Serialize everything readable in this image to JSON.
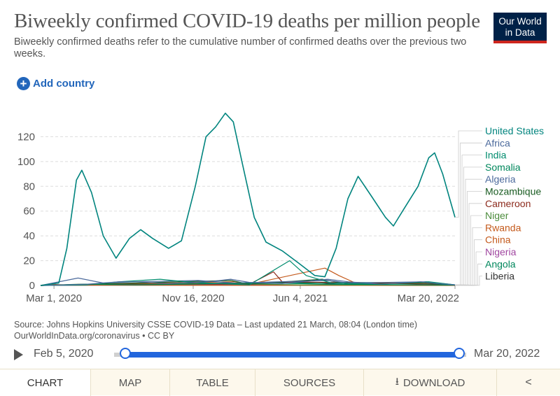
{
  "header": {
    "title": "Biweekly confirmed COVID-19 deaths per million people",
    "subtitle": "Biweekly confirmed deaths refer to the cumulative number of confirmed deaths over the previous two weeks.",
    "logo_line1": "Our World",
    "logo_line2": "in Data"
  },
  "controls": {
    "add_country_label": "Add country"
  },
  "chart_data": {
    "type": "line",
    "x_tick_labels": [
      "Mar 1, 2020",
      "Nov 16, 2020",
      "Jun 4, 2021",
      "Mar 20, 2022"
    ],
    "x_range": [
      "2020-02-05",
      "2022-03-20"
    ],
    "ylim": [
      0,
      140
    ],
    "y_ticks": [
      0,
      20,
      40,
      60,
      80,
      100,
      120
    ],
    "grid": "horizontal dashed",
    "legend_position": "right",
    "series": [
      {
        "name": "United States",
        "color": "#00847e",
        "points": [
          [
            "2020-02-05",
            0
          ],
          [
            "2020-03-10",
            2
          ],
          [
            "2020-03-25",
            30
          ],
          [
            "2020-04-12",
            85
          ],
          [
            "2020-04-22",
            93
          ],
          [
            "2020-05-10",
            75
          ],
          [
            "2020-06-01",
            40
          ],
          [
            "2020-06-25",
            22
          ],
          [
            "2020-07-20",
            38
          ],
          [
            "2020-08-10",
            45
          ],
          [
            "2020-09-01",
            38
          ],
          [
            "2020-10-01",
            30
          ],
          [
            "2020-10-25",
            36
          ],
          [
            "2020-11-20",
            80
          ],
          [
            "2020-12-10",
            120
          ],
          [
            "2020-12-28",
            128
          ],
          [
            "2021-01-15",
            139
          ],
          [
            "2021-01-30",
            132
          ],
          [
            "2021-02-15",
            100
          ],
          [
            "2021-03-10",
            55
          ],
          [
            "2021-04-01",
            35
          ],
          [
            "2021-05-01",
            28
          ],
          [
            "2021-06-01",
            18
          ],
          [
            "2021-07-01",
            8
          ],
          [
            "2021-07-20",
            7
          ],
          [
            "2021-08-10",
            30
          ],
          [
            "2021-09-01",
            70
          ],
          [
            "2021-09-20",
            88
          ],
          [
            "2021-10-15",
            72
          ],
          [
            "2021-11-10",
            55
          ],
          [
            "2021-11-25",
            48
          ],
          [
            "2021-12-15",
            62
          ],
          [
            "2022-01-10",
            80
          ],
          [
            "2022-01-30",
            103
          ],
          [
            "2022-02-10",
            107
          ],
          [
            "2022-02-25",
            90
          ],
          [
            "2022-03-10",
            70
          ],
          [
            "2022-03-20",
            55
          ]
        ]
      },
      {
        "name": "Africa",
        "color": "#4c6a9c",
        "points": [
          [
            "2020-02-05",
            0
          ],
          [
            "2020-05-01",
            1
          ],
          [
            "2020-07-01",
            3
          ],
          [
            "2020-08-01",
            3
          ],
          [
            "2020-10-01",
            1.5
          ],
          [
            "2020-12-15",
            3
          ],
          [
            "2021-01-25",
            5
          ],
          [
            "2021-03-01",
            2.5
          ],
          [
            "2021-05-01",
            1.5
          ],
          [
            "2021-07-25",
            5
          ],
          [
            "2021-09-01",
            3
          ],
          [
            "2021-11-01",
            1
          ],
          [
            "2022-01-15",
            3
          ],
          [
            "2022-02-15",
            1.5
          ],
          [
            "2022-03-20",
            0.5
          ]
        ]
      },
      {
        "name": "India",
        "color": "#008c6e",
        "points": [
          [
            "2020-02-05",
            0
          ],
          [
            "2020-05-01",
            0.5
          ],
          [
            "2020-07-01",
            3
          ],
          [
            "2020-09-15",
            5
          ],
          [
            "2020-11-01",
            3
          ],
          [
            "2021-01-01",
            1.5
          ],
          [
            "2021-03-01",
            0.5
          ],
          [
            "2021-05-15",
            20
          ],
          [
            "2021-06-15",
            8
          ],
          [
            "2021-08-01",
            2
          ],
          [
            "2021-11-01",
            1
          ],
          [
            "2022-01-30",
            3
          ],
          [
            "2022-03-20",
            0.5
          ]
        ]
      },
      {
        "name": "Somalia",
        "color": "#00875c",
        "points": [
          [
            "2020-02-05",
            0
          ],
          [
            "2020-05-01",
            1
          ],
          [
            "2020-08-01",
            0.5
          ],
          [
            "2021-04-01",
            2
          ],
          [
            "2021-08-01",
            1
          ],
          [
            "2022-03-20",
            0.3
          ]
        ]
      },
      {
        "name": "Algeria",
        "color": "#4c6a9c",
        "points": [
          [
            "2020-02-05",
            0
          ],
          [
            "2020-04-15",
            6
          ],
          [
            "2020-06-01",
            2
          ],
          [
            "2020-08-01",
            3
          ],
          [
            "2020-11-25",
            4
          ],
          [
            "2021-02-01",
            2
          ],
          [
            "2021-07-25",
            4
          ],
          [
            "2021-09-01",
            2
          ],
          [
            "2022-01-25",
            3
          ],
          [
            "2022-03-20",
            0.5
          ]
        ]
      },
      {
        "name": "Mozambique",
        "color": "#1a5c22",
        "points": [
          [
            "2020-02-05",
            0
          ],
          [
            "2021-01-25",
            4
          ],
          [
            "2021-03-01",
            1
          ],
          [
            "2021-07-15",
            5
          ],
          [
            "2021-09-01",
            1
          ],
          [
            "2022-01-20",
            2
          ],
          [
            "2022-03-20",
            0.3
          ]
        ]
      },
      {
        "name": "Cameroon",
        "color": "#8c2a1c",
        "points": [
          [
            "2020-02-05",
            0
          ],
          [
            "2020-06-01",
            1
          ],
          [
            "2021-03-01",
            1
          ],
          [
            "2021-04-15",
            11
          ],
          [
            "2021-05-01",
            3
          ],
          [
            "2021-10-15",
            2
          ],
          [
            "2022-03-20",
            0.5
          ]
        ]
      },
      {
        "name": "Niger",
        "color": "#4c8c3c",
        "points": [
          [
            "2020-02-05",
            0
          ],
          [
            "2020-04-15",
            1
          ],
          [
            "2021-01-01",
            1.5
          ],
          [
            "2021-06-01",
            0.5
          ],
          [
            "2022-03-20",
            0.3
          ]
        ]
      },
      {
        "name": "Rwanda",
        "color": "#c45a1c",
        "points": [
          [
            "2020-02-05",
            0
          ],
          [
            "2021-02-01",
            3
          ],
          [
            "2021-03-01",
            1
          ],
          [
            "2021-07-20",
            14
          ],
          [
            "2021-08-15",
            8
          ],
          [
            "2021-09-15",
            2
          ],
          [
            "2022-01-20",
            2
          ],
          [
            "2022-03-20",
            0.3
          ]
        ]
      },
      {
        "name": "China",
        "color": "#c45a1c",
        "points": [
          [
            "2020-02-05",
            0.1
          ],
          [
            "2020-02-20",
            1
          ],
          [
            "2020-04-01",
            0.3
          ],
          [
            "2022-03-20",
            0
          ]
        ]
      },
      {
        "name": "Nigeria",
        "color": "#a046a0",
        "points": [
          [
            "2020-02-05",
            0
          ],
          [
            "2020-07-01",
            0.5
          ],
          [
            "2021-02-01",
            0.5
          ],
          [
            "2021-09-01",
            0.5
          ],
          [
            "2022-03-20",
            0.1
          ]
        ]
      },
      {
        "name": "Angola",
        "color": "#00875c",
        "points": [
          [
            "2020-02-05",
            0
          ],
          [
            "2020-10-15",
            1
          ],
          [
            "2021-01-01",
            1
          ],
          [
            "2021-04-01",
            1.5
          ],
          [
            "2021-09-01",
            2.5
          ],
          [
            "2022-01-25",
            2
          ],
          [
            "2022-03-20",
            0.3
          ]
        ]
      },
      {
        "name": "Liberia",
        "color": "#333333",
        "points": [
          [
            "2020-02-05",
            0
          ],
          [
            "2020-06-01",
            1
          ],
          [
            "2021-07-01",
            2.5
          ],
          [
            "2021-09-01",
            0.5
          ],
          [
            "2022-03-20",
            0.1
          ]
        ]
      }
    ]
  },
  "footer": {
    "source_line1": "Source: Johns Hopkins University CSSE COVID-19 Data – Last updated 21 March, 08:04 (London time)",
    "source_line2": "OurWorldInData.org/coronavirus • CC BY"
  },
  "timeline": {
    "start_label": "Feb 5, 2020",
    "end_label": "Mar 20, 2022"
  },
  "tabs": [
    {
      "label": "CHART",
      "active": true
    },
    {
      "label": "MAP"
    },
    {
      "label": "TABLE"
    },
    {
      "label": "SOURCES"
    },
    {
      "label": "DOWNLOAD"
    }
  ],
  "icons": {
    "add": "plus-circle-icon",
    "play": "play-icon",
    "download": "download-icon",
    "share": "share-icon"
  }
}
